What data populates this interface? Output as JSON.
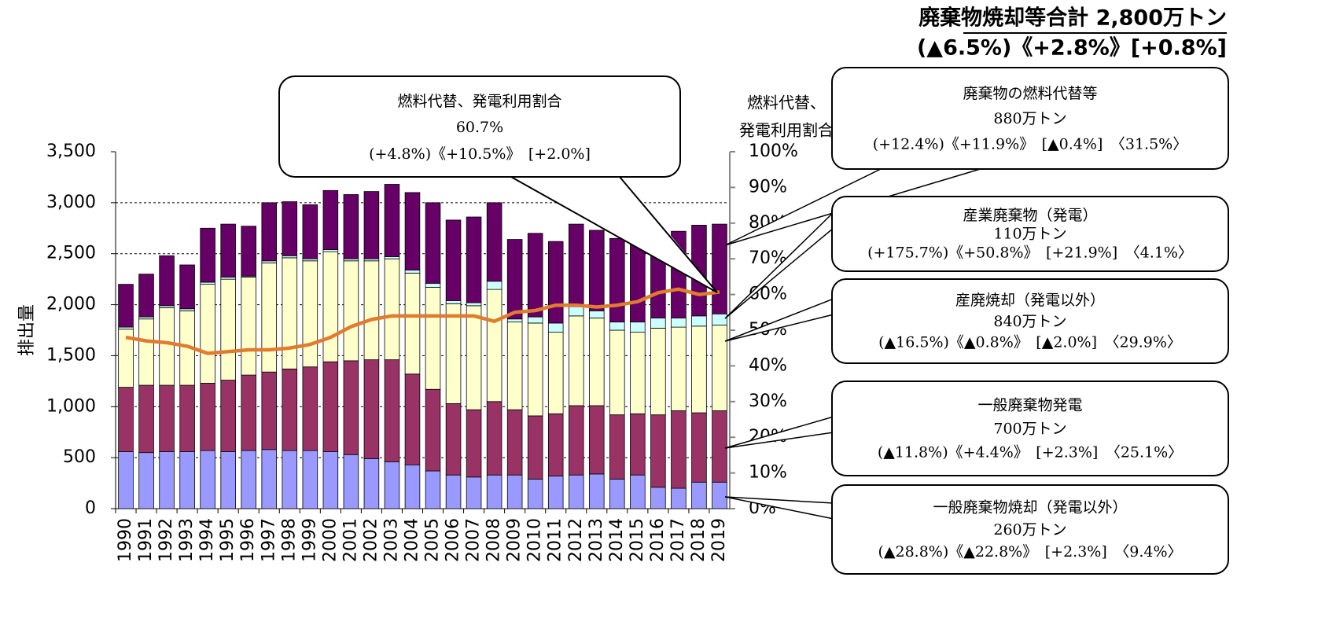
{
  "chart_data": {
    "type": "stacked_bar_line",
    "title": [
      "廃棄物焼却等合計  2,800万トン",
      "(▲6.5%)《+2.8%》[+0.8%]"
    ],
    "ylabel": "排出量",
    "y2label": [
      "燃料代替、",
      "発電利用割合"
    ],
    "categories": [
      "1990",
      "1991",
      "1992",
      "1993",
      "1994",
      "1995",
      "1996",
      "1997",
      "1998",
      "1999",
      "2000",
      "2001",
      "2002",
      "2003",
      "2004",
      "2005",
      "2006",
      "2007",
      "2008",
      "2009",
      "2010",
      "2011",
      "2012",
      "2013",
      "2014",
      "2015",
      "2016",
      "2017",
      "2018",
      "2019"
    ],
    "ylim": [
      0,
      3500
    ],
    "yticks": [
      0,
      500,
      {
        "value": 1000,
        "label": "1,000"
      },
      {
        "value": 1500,
        "label": "1,500"
      },
      {
        "value": 2000,
        "label": "2,000"
      },
      {
        "value": 2500,
        "label": "2,500"
      },
      {
        "value": 3000,
        "label": "3,000"
      },
      {
        "value": 3500,
        "label": "3,500"
      }
    ],
    "y2lim": [
      0,
      100
    ],
    "y2ticks": [
      {
        "value": 0,
        "label": "0%"
      },
      {
        "value": 10,
        "label": "10%"
      },
      {
        "value": 20,
        "label": "20%"
      },
      {
        "value": 30,
        "label": "30%"
      },
      {
        "value": 40,
        "label": "40%"
      },
      {
        "value": 50,
        "label": "50%"
      },
      {
        "value": 60,
        "label": "60%"
      },
      {
        "value": 70,
        "label": "70%"
      },
      {
        "value": 80,
        "label": "80%"
      },
      {
        "value": 90,
        "label": "90%"
      },
      {
        "value": 100,
        "label": "100%"
      }
    ],
    "grid": true,
    "series": [
      {
        "name": "一般廃棄物焼却（発電以外）",
        "color": "#9999ff",
        "callout": [
          "260万トン",
          "(▲28.8%)《▲22.8%》　[+2.3%]　〈9.4%〉"
        ],
        "values": [
          560,
          550,
          560,
          560,
          570,
          560,
          570,
          580,
          570,
          570,
          560,
          530,
          490,
          460,
          430,
          370,
          330,
          310,
          330,
          330,
          290,
          320,
          330,
          340,
          290,
          330,
          210,
          200,
          260,
          260
        ]
      },
      {
        "name": "一般廃棄物発電",
        "color": "#993366",
        "callout": [
          "700万トン",
          "(▲11.8%)《+4.4%》　[+2.3%]　〈25.1%〉"
        ],
        "values": [
          630,
          660,
          650,
          650,
          660,
          700,
          740,
          760,
          800,
          820,
          880,
          920,
          970,
          1000,
          890,
          800,
          700,
          660,
          720,
          640,
          620,
          610,
          680,
          670,
          630,
          600,
          710,
          760,
          680,
          700
        ]
      },
      {
        "name": "産廃焼却（発電以外）",
        "color": "#ffffcc",
        "callout": [
          "840万トン",
          "(▲16.5%)《▲0.8%》　[▲2.0%]　〈29.9%〉"
        ],
        "values": [
          570,
          650,
          760,
          730,
          970,
          990,
          960,
          1070,
          1090,
          1040,
          1080,
          980,
          970,
          990,
          990,
          1000,
          980,
          1020,
          1100,
          860,
          910,
          800,
          880,
          860,
          830,
          800,
          850,
          820,
          850,
          840
        ]
      },
      {
        "name": "産業廃棄物（発電）",
        "color": "#ccffff",
        "callout": [
          "110万トン",
          "(+175.7%)《+50.8%》　[+21.9%]　〈4.1%〉"
        ],
        "values": [
          20,
          20,
          20,
          20,
          20,
          20,
          10,
          20,
          20,
          20,
          20,
          20,
          20,
          20,
          30,
          40,
          30,
          30,
          80,
          30,
          60,
          90,
          90,
          70,
          80,
          100,
          100,
          90,
          100,
          110
        ]
      },
      {
        "name": "廃棄物の燃料代替等",
        "color": "#660066",
        "callout": [
          "880万トン",
          "(+12.4%)《+11.9%》　[▲0.4%]　〈31.5%〉"
        ],
        "values": [
          420,
          420,
          490,
          430,
          530,
          520,
          490,
          570,
          530,
          530,
          580,
          630,
          660,
          710,
          760,
          790,
          790,
          840,
          770,
          780,
          820,
          800,
          810,
          790,
          820,
          770,
          630,
          850,
          890,
          880
        ]
      },
      {
        "name": "燃料代替、発電利用割合",
        "type": "line",
        "axis": "y2",
        "color": "#e07b2f",
        "callout": [
          "60.7%",
          "(+4.8%)《+10.5%》　[+2.0%]"
        ],
        "values": [
          48,
          47,
          46.5,
          45.5,
          43.5,
          44,
          44.5,
          44.5,
          45,
          46,
          48,
          51,
          53,
          54,
          54,
          54,
          54,
          54,
          52.5,
          55,
          55.5,
          57,
          57,
          56.5,
          57,
          58,
          60.5,
          61.5,
          60,
          60.7
        ]
      }
    ]
  }
}
